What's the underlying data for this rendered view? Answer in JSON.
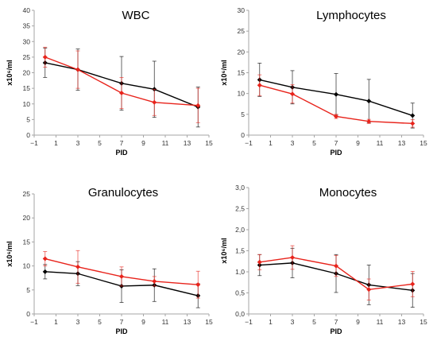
{
  "chart_data": [
    {
      "type": "line",
      "title": "WBC",
      "xlabel": "PID",
      "ylabel": "x10⁶/ml",
      "xlim": [
        -1,
        15
      ],
      "xticks": [
        -1,
        1,
        3,
        5,
        7,
        9,
        11,
        13,
        15
      ],
      "xtick_labels": [
        "−1",
        "1",
        "3",
        "5",
        "7",
        "9",
        "11",
        "13",
        "15"
      ],
      "ylim": [
        0,
        40
      ],
      "yticks": [
        0,
        5,
        10,
        15,
        20,
        25,
        30,
        35,
        40
      ],
      "ytick_labels": [
        "0",
        "5",
        "10",
        "15",
        "20",
        "25",
        "30",
        "35",
        "40"
      ],
      "grid": false,
      "series": [
        {
          "color": "#000000",
          "x": [
            0,
            3,
            7,
            10,
            14
          ],
          "y": [
            23.2,
            21.0,
            16.6,
            14.7,
            9.0
          ],
          "err": [
            4.7,
            6.6,
            8.6,
            9.0,
            6.4
          ]
        },
        {
          "color": "#e8231b",
          "x": [
            0,
            3,
            7,
            10,
            14
          ],
          "y": [
            25.0,
            21.0,
            13.5,
            10.5,
            9.5
          ],
          "err": [
            3.2,
            6.0,
            5.0,
            4.2,
            5.5
          ]
        }
      ]
    },
    {
      "type": "line",
      "title": "Lymphocytes",
      "xlabel": "PID",
      "ylabel": "x10⁶/ml",
      "xlim": [
        -1,
        15
      ],
      "xticks": [
        -1,
        1,
        3,
        5,
        7,
        9,
        11,
        13,
        15
      ],
      "xtick_labels": [
        "−1",
        "1",
        "3",
        "5",
        "7",
        "9",
        "11",
        "13",
        "15"
      ],
      "ylim": [
        0,
        30
      ],
      "yticks": [
        0,
        5,
        10,
        15,
        20,
        25,
        30
      ],
      "ytick_labels": [
        "0",
        "5",
        "10",
        "15",
        "20",
        "25",
        "30"
      ],
      "grid": false,
      "series": [
        {
          "color": "#000000",
          "x": [
            0,
            3,
            7,
            10,
            14
          ],
          "y": [
            13.3,
            11.5,
            9.8,
            8.2,
            4.7
          ],
          "err": [
            4.0,
            4.0,
            5.0,
            5.2,
            3.0
          ]
        },
        {
          "color": "#e8231b",
          "x": [
            0,
            3,
            7,
            10,
            14
          ],
          "y": [
            12.0,
            9.9,
            4.5,
            3.3,
            2.8
          ],
          "err": [
            2.5,
            2.2,
            0.5,
            0.5,
            0.9
          ]
        }
      ]
    },
    {
      "type": "line",
      "title": "Granulocytes",
      "xlabel": "PID",
      "ylabel": "x10⁶/ml",
      "xlim": [
        -1,
        15
      ],
      "xticks": [
        -1,
        1,
        3,
        5,
        7,
        9,
        11,
        13,
        15
      ],
      "xtick_labels": [
        "−1",
        "1",
        "3",
        "5",
        "7",
        "9",
        "11",
        "13",
        "15"
      ],
      "ylim": [
        0,
        25
      ],
      "yticks": [
        0,
        5,
        10,
        15,
        20,
        25
      ],
      "ytick_labels": [
        "0",
        "5",
        "10",
        "15",
        "20",
        "25"
      ],
      "grid": false,
      "series": [
        {
          "color": "#000000",
          "x": [
            0,
            3,
            7,
            10,
            14
          ],
          "y": [
            8.8,
            8.4,
            5.8,
            6.0,
            3.8
          ],
          "err": [
            1.5,
            2.5,
            3.4,
            3.4,
            2.5
          ]
        },
        {
          "color": "#e8231b",
          "x": [
            0,
            3,
            7,
            10,
            14
          ],
          "y": [
            11.5,
            9.8,
            7.8,
            6.8,
            6.1
          ],
          "err": [
            1.5,
            3.4,
            2.0,
            1.0,
            2.8
          ]
        }
      ]
    },
    {
      "type": "line",
      "title": "Monocytes",
      "xlabel": "PID",
      "ylabel": "x10⁶/ml",
      "xlim": [
        -1,
        15
      ],
      "xticks": [
        -1,
        1,
        3,
        5,
        7,
        9,
        11,
        13,
        15
      ],
      "xtick_labels": [
        "−1",
        "1",
        "3",
        "5",
        "7",
        "9",
        "11",
        "13",
        "15"
      ],
      "ylim": [
        0,
        3
      ],
      "yticks": [
        0,
        0.5,
        1,
        1.5,
        2,
        2.5,
        3
      ],
      "ytick_labels": [
        "0,0",
        "0,5",
        "1,0",
        "1,5",
        "2,0",
        "2,5",
        "3,0"
      ],
      "grid": false,
      "series": [
        {
          "color": "#000000",
          "x": [
            0,
            3,
            7,
            10,
            14
          ],
          "y": [
            1.16,
            1.21,
            0.96,
            0.69,
            0.56
          ],
          "err": [
            0.25,
            0.35,
            0.45,
            0.47,
            0.4
          ]
        },
        {
          "color": "#e8231b",
          "x": [
            0,
            3,
            7,
            10,
            14
          ],
          "y": [
            1.23,
            1.34,
            1.14,
            0.58,
            0.71
          ],
          "err": [
            0.18,
            0.28,
            0.25,
            0.25,
            0.3
          ]
        }
      ]
    }
  ]
}
